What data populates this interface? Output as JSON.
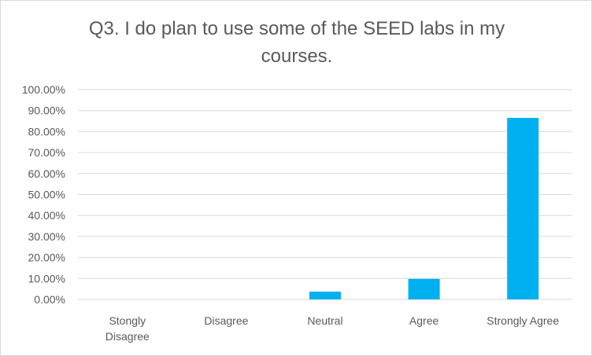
{
  "chart_data": {
    "type": "bar",
    "title": "Q3. I do plan to use some of the SEED labs in my courses.",
    "categories": [
      "Stongly Disagree",
      "Disagree",
      "Neutral",
      "Agree",
      "Strongly Agree"
    ],
    "values": [
      0,
      0,
      3.7,
      9.8,
      86.5
    ],
    "y_ticks": [
      "0.00%",
      "10.00%",
      "20.00%",
      "30.00%",
      "40.00%",
      "50.00%",
      "60.00%",
      "70.00%",
      "80.00%",
      "90.00%",
      "100.00%"
    ],
    "ylim": [
      0,
      100
    ],
    "grid": true,
    "legend": "none",
    "bar_color": "#00b0f0",
    "grid_color": "#d9d9d9"
  }
}
